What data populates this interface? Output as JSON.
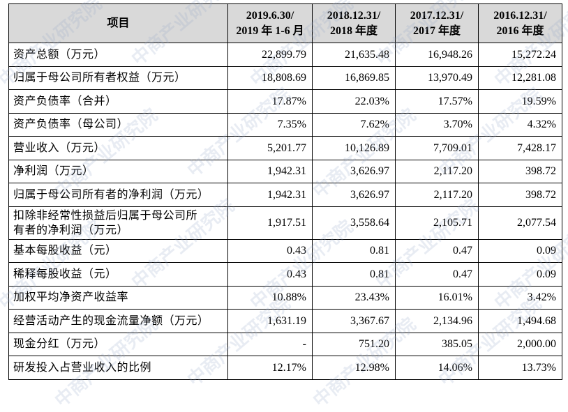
{
  "watermark": "中商产业研究院",
  "table": {
    "header": [
      [
        "项目"
      ],
      [
        "2019.6.30/",
        "2019 年 1-6 月"
      ],
      [
        "2018.12.31/",
        "2018 年度"
      ],
      [
        "2017.12.31/",
        "2017 年度"
      ],
      [
        "2016.12.31/",
        "2016 年度"
      ]
    ],
    "rows": [
      [
        [
          "资产总额（万元）"
        ],
        "22,899.79",
        "21,635.48",
        "16,948.26",
        "15,272.24"
      ],
      [
        [
          "归属于母公司所有者权益（万元）"
        ],
        "18,808.69",
        "16,869.85",
        "13,970.49",
        "12,281.08"
      ],
      [
        [
          "资产负债率（合并）"
        ],
        "17.87%",
        "22.03%",
        "17.57%",
        "19.59%"
      ],
      [
        [
          "资产负债率（母公司）"
        ],
        "7.35%",
        "7.62%",
        "3.70%",
        "4.32%"
      ],
      [
        [
          "营业收入（万元）"
        ],
        "5,201.77",
        "10,126.89",
        "7,709.01",
        "7,428.17"
      ],
      [
        [
          "净利润（万元）"
        ],
        "1,942.31",
        "3,626.97",
        "2,117.20",
        "398.72"
      ],
      [
        [
          "归属于母公司所有者的净利润（万元）"
        ],
        "1,942.31",
        "3,626.97",
        "2,117.20",
        "398.72"
      ],
      [
        [
          "扣除非经常性损益后归属于母公司所",
          "有者的净利润（万元）"
        ],
        "1,917.51",
        "3,558.64",
        "2,105.71",
        "2,077.54"
      ],
      [
        [
          "基本每股收益（元）"
        ],
        "0.43",
        "0.81",
        "0.47",
        "0.09"
      ],
      [
        [
          "稀释每股收益（元）"
        ],
        "0.43",
        "0.81",
        "0.47",
        "0.09"
      ],
      [
        [
          "加权平均净资产收益率"
        ],
        "10.88%",
        "23.43%",
        "16.01%",
        "3.42%"
      ],
      [
        [
          "经营活动产生的现金流量净额（万元）"
        ],
        "1,631.19",
        "3,367.67",
        "2,134.96",
        "1,494.68"
      ],
      [
        [
          "现金分红（万元）"
        ],
        "-",
        "751.20",
        "385.05",
        "2,000.00"
      ],
      [
        [
          "研发投入占营业收入的比例"
        ],
        "12.17%",
        "12.98%",
        "14.06%",
        "13.73%"
      ]
    ]
  }
}
